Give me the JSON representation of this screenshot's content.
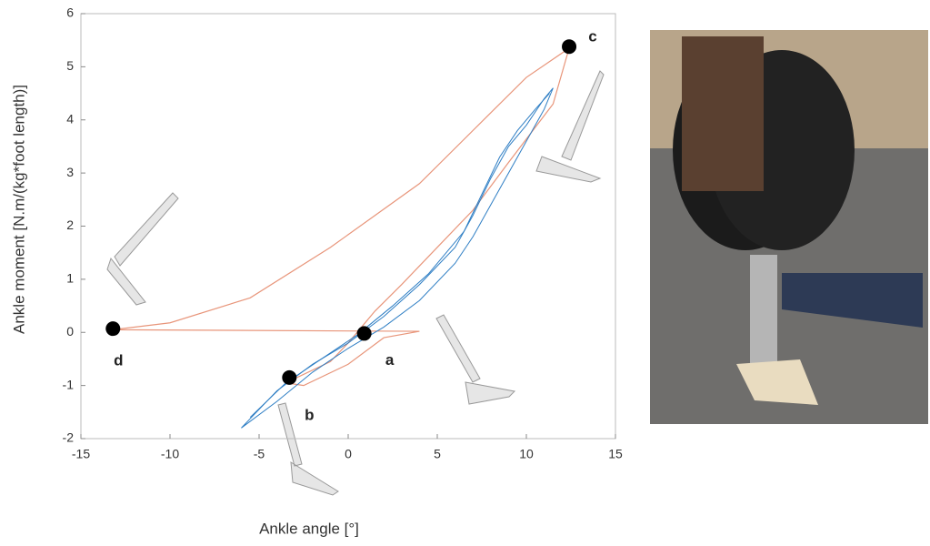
{
  "chart_data": {
    "type": "line",
    "xlabel": "Ankle angle [°]",
    "ylabel": "Ankle moment [N.m/(kg*foot length)]",
    "xlim": [
      -15,
      15
    ],
    "xticks": [
      -15,
      -10,
      -5,
      0,
      5,
      10,
      15
    ],
    "ylim": [
      -2,
      6
    ],
    "yticks": [
      -2,
      -1,
      0,
      1,
      2,
      3,
      4,
      5,
      6
    ],
    "series": [
      {
        "color": "#e8957a",
        "x": [
          4,
          -13.2,
          -10,
          -5.5,
          -1,
          4,
          10,
          12.4,
          11.5,
          9,
          7,
          5,
          3,
          1.5,
          0,
          -1,
          -3.5,
          -2.5,
          0,
          2,
          4
        ],
        "values": [
          0.02,
          0.05,
          0.18,
          0.65,
          1.6,
          2.8,
          4.8,
          5.35,
          4.3,
          3.2,
          2.3,
          1.6,
          0.9,
          0.4,
          -0.2,
          -0.55,
          -0.95,
          -1.0,
          -0.6,
          -0.1,
          0.02
        ]
      },
      {
        "color": "#2e7ec4",
        "x": [
          -6,
          -4,
          -2,
          0,
          2,
          4,
          6,
          7,
          8,
          9,
          10,
          11,
          11.5,
          11,
          10,
          9,
          8,
          7,
          6,
          4,
          2,
          0,
          -2,
          -4,
          -6
        ],
        "values": [
          -1.8,
          -1.1,
          -0.6,
          -0.2,
          0.3,
          0.9,
          1.6,
          2.2,
          2.9,
          3.5,
          3.9,
          4.4,
          4.6,
          4.2,
          3.6,
          3.0,
          2.4,
          1.8,
          1.3,
          0.6,
          0.1,
          -0.3,
          -0.75,
          -1.3,
          -1.8
        ]
      },
      {
        "color": "#2e7ec4",
        "x": [
          -5.5,
          -3.5,
          -1.5,
          0.5,
          2.5,
          4.5,
          6.5,
          7.5,
          8.5,
          9.5,
          10.5,
          11.3
        ],
        "values": [
          -1.6,
          -0.95,
          -0.5,
          -0.05,
          0.5,
          1.1,
          1.9,
          2.6,
          3.3,
          3.8,
          4.2,
          4.5
        ]
      }
    ],
    "points": {
      "color": "#000000",
      "labels": [
        "a",
        "b",
        "c",
        "d"
      ],
      "x": [
        0.9,
        -3.3,
        12.4,
        -13.2
      ],
      "values": [
        -0.02,
        -0.85,
        5.38,
        0.07
      ]
    }
  }
}
